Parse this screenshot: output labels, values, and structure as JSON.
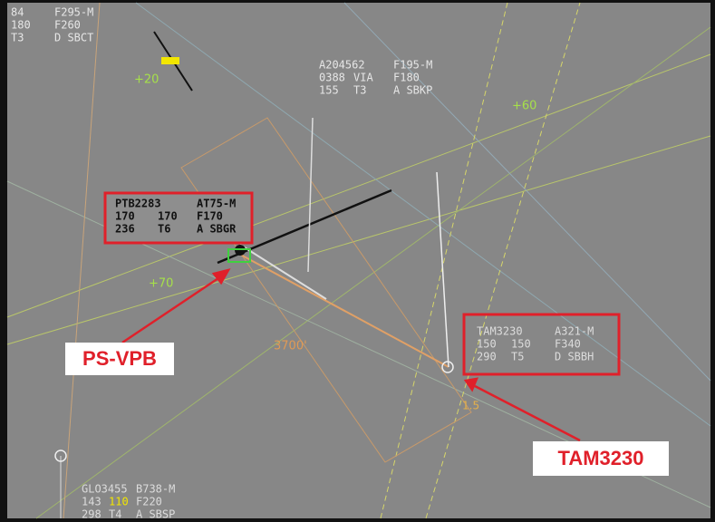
{
  "blocks": [
    {
      "rows": [
        [
          "84",
          "F295-M"
        ],
        [
          "180",
          "F260"
        ],
        [
          "T3",
          "D SBCT"
        ]
      ]
    },
    {
      "rows": [
        [
          "A204562",
          "F195-M"
        ],
        [
          "0388",
          "VIA",
          "F180"
        ],
        [
          "155",
          "T3",
          "A SBKP"
        ]
      ]
    },
    {
      "rows": [
        [
          "PTB2283",
          "AT75-M"
        ],
        [
          "170",
          "170",
          "F170"
        ],
        [
          "236",
          "T6",
          "A SBGR"
        ]
      ]
    },
    {
      "rows": [
        [
          "TAM3230",
          "A321-M"
        ],
        [
          "150",
          "150",
          "F340"
        ],
        [
          "290",
          "T5",
          "D SBBH"
        ]
      ]
    },
    {
      "rows": [
        [
          "GLO3455",
          "B738-M"
        ],
        [
          "143",
          "110",
          "F220"
        ],
        [
          "298",
          "T4",
          "A SBSP"
        ]
      ]
    }
  ],
  "callouts": [
    "PS-VPB",
    "TAM3230"
  ],
  "map_labels": [
    "+20",
    "+60",
    "+70",
    "3700'",
    "1.5"
  ]
}
